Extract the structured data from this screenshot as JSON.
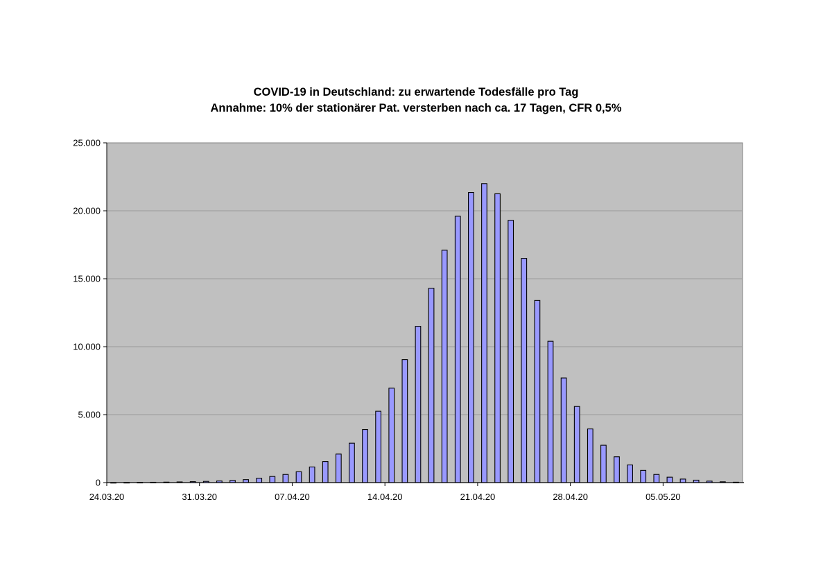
{
  "chart_data": {
    "type": "bar",
    "title": "COVID-19 in Deutschland: zu erwartende Todesfälle pro Tag",
    "subtitle": "Annahme: 10% der stationärer Pat. versterben nach ca. 17 Tagen, CFR 0,5%",
    "xlabel": "",
    "ylabel": "",
    "ylim": [
      0,
      25000
    ],
    "yticks": [
      0,
      5000,
      10000,
      15000,
      20000,
      25000
    ],
    "ytick_labels": [
      "0",
      "5.000",
      "10.000",
      "15.000",
      "20.000",
      "25.000"
    ],
    "xtick_labels": [
      "24.03.20",
      "31.03.20",
      "07.04.20",
      "14.04.20",
      "21.04.20",
      "28.04.20",
      "05.05.20"
    ],
    "xtick_every": 7,
    "categories": [
      "24.03.20",
      "25.03.20",
      "26.03.20",
      "27.03.20",
      "28.03.20",
      "29.03.20",
      "30.03.20",
      "31.03.20",
      "01.04.20",
      "02.04.20",
      "03.04.20",
      "04.04.20",
      "05.04.20",
      "06.04.20",
      "07.04.20",
      "08.04.20",
      "09.04.20",
      "10.04.20",
      "11.04.20",
      "12.04.20",
      "13.04.20",
      "14.04.20",
      "15.04.20",
      "16.04.20",
      "17.04.20",
      "18.04.20",
      "19.04.20",
      "20.04.20",
      "21.04.20",
      "22.04.20",
      "23.04.20",
      "24.04.20",
      "25.04.20",
      "26.04.20",
      "27.04.20",
      "28.04.20",
      "29.04.20",
      "30.04.20",
      "01.05.20",
      "02.05.20",
      "03.05.20",
      "04.05.20",
      "05.05.20",
      "06.05.20",
      "07.05.20",
      "08.05.20",
      "09.05.20",
      "10.05.20"
    ],
    "values": [
      5,
      10,
      15,
      25,
      35,
      50,
      70,
      90,
      120,
      160,
      220,
      320,
      450,
      600,
      800,
      1150,
      1550,
      2100,
      2900,
      3900,
      5250,
      6950,
      9050,
      11500,
      14300,
      17100,
      19600,
      21350,
      22000,
      21250,
      19300,
      16500,
      13400,
      10400,
      7700,
      5600,
      3950,
      2750,
      1900,
      1300,
      900,
      600,
      400,
      260,
      180,
      110,
      60,
      30
    ],
    "grid": true,
    "legend": "none",
    "colors": {
      "plot_background": "#c0c0c0",
      "bar_fill": "#9999ff",
      "bar_stroke": "#000000",
      "gridline": "#9a9a9a"
    }
  }
}
